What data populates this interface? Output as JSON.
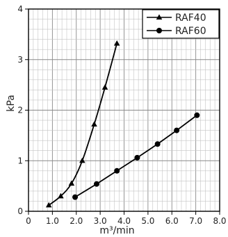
{
  "chart_data": {
    "type": "line",
    "xlabel": "m³/min",
    "ylabel": "kPa",
    "xlim": [
      0,
      8
    ],
    "ylim": [
      0,
      4
    ],
    "x_ticks": [
      "0",
      "1.0",
      "2.0",
      "3.0",
      "4.0",
      "5.0",
      "6.0",
      "7.0",
      "8.0"
    ],
    "y_ticks": [
      "0",
      "1",
      "2",
      "3",
      "4"
    ],
    "grid": true,
    "legend_position": "top-right",
    "series": [
      {
        "name": "RAF40",
        "marker": "triangle",
        "color": "#000000",
        "x": [
          0.85,
          1.35,
          1.8,
          2.25,
          2.75,
          3.2,
          3.7
        ],
        "y": [
          0.12,
          0.3,
          0.55,
          1.0,
          1.72,
          2.45,
          3.32
        ]
      },
      {
        "name": "RAF60",
        "marker": "circle",
        "color": "#000000",
        "x": [
          1.95,
          2.85,
          3.7,
          4.55,
          5.4,
          6.2,
          7.05
        ],
        "y": [
          0.28,
          0.54,
          0.8,
          1.06,
          1.33,
          1.6,
          1.9
        ]
      }
    ]
  }
}
